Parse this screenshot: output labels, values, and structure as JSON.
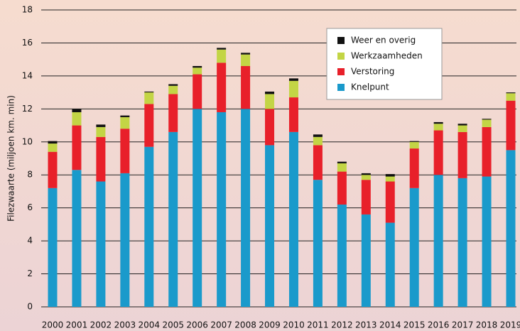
{
  "chart_data": {
    "type": "stacked_bar",
    "ylabel": "Filezwaarte (miljoen km. min)",
    "categories": [
      "2000",
      "2001",
      "2002",
      "2003",
      "2004",
      "2005",
      "2006",
      "2007",
      "2008",
      "2009",
      "2010",
      "2011",
      "2012",
      "2013",
      "2014",
      "2015",
      "2016",
      "2017",
      "2018",
      "2019"
    ],
    "series": [
      {
        "name": "Knelpunt",
        "color": "#1a9acb",
        "values": [
          7.2,
          8.3,
          7.6,
          8.1,
          9.7,
          10.6,
          12.0,
          11.8,
          12.0,
          9.8,
          10.6,
          7.7,
          6.2,
          5.6,
          5.1,
          7.2,
          8.0,
          7.8,
          7.9,
          9.5
        ]
      },
      {
        "name": "Verstoring",
        "color": "#e8202a",
        "values": [
          2.2,
          2.7,
          2.7,
          2.7,
          2.6,
          2.3,
          2.1,
          3.0,
          2.6,
          2.2,
          2.1,
          2.1,
          2.0,
          2.1,
          2.5,
          2.4,
          2.7,
          2.8,
          3.0,
          3.0
        ]
      },
      {
        "name": "Werkzaamheden",
        "color": "#c3d545",
        "values": [
          0.5,
          0.8,
          0.6,
          0.7,
          0.7,
          0.5,
          0.4,
          0.8,
          0.7,
          0.9,
          1.0,
          0.5,
          0.5,
          0.3,
          0.3,
          0.4,
          0.4,
          0.4,
          0.45,
          0.45
        ]
      },
      {
        "name": "Weer en overig",
        "color": "#111111",
        "values": [
          0.15,
          0.2,
          0.15,
          0.1,
          0.05,
          0.1,
          0.1,
          0.1,
          0.1,
          0.15,
          0.15,
          0.15,
          0.1,
          0.1,
          0.15,
          0.05,
          0.1,
          0.1,
          0.05,
          0.05
        ]
      }
    ],
    "ylim": [
      0,
      18
    ],
    "yticks": [
      0,
      2,
      4,
      6,
      8,
      10,
      12,
      14,
      16,
      18
    ],
    "grid": true,
    "legend": "top-right"
  }
}
